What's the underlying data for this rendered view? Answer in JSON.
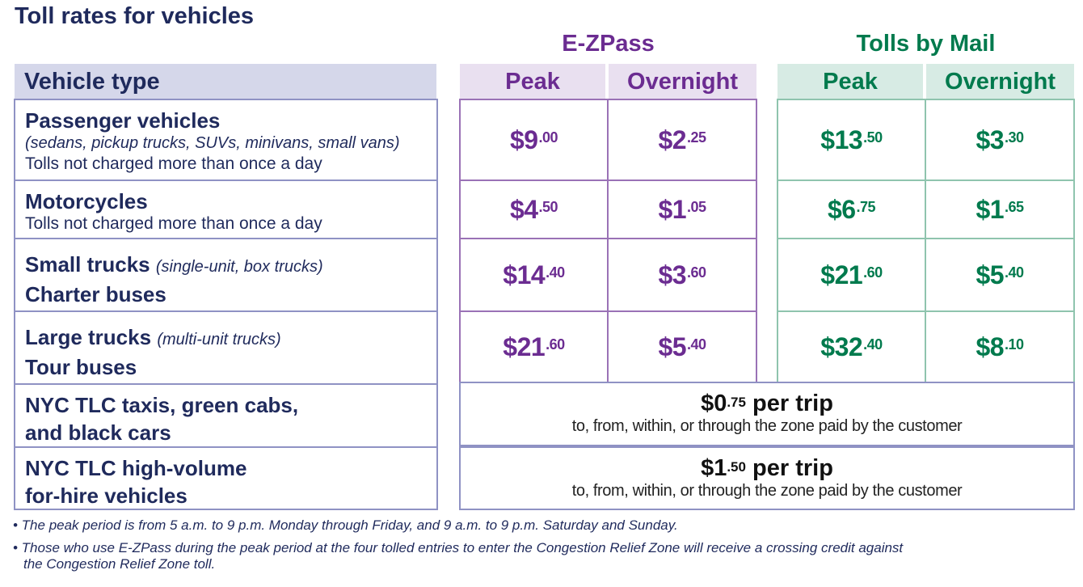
{
  "title": "Toll rates for vehicles",
  "groups": {
    "ezpass": "E-ZPass",
    "mail": "Tolls by Mail"
  },
  "headers": {
    "vehicle_type": "Vehicle type",
    "peak": "Peak",
    "overnight": "Overnight"
  },
  "vehicles": [
    {
      "name": "Passenger vehicles",
      "detail": "(sedans, pickup trucks, SUVs, minivans, small vans)",
      "note": "Tolls not charged more than once a day"
    },
    {
      "name": "Motorcycles",
      "note": "Tolls not charged more than once a day"
    },
    {
      "name": "Small trucks",
      "detail": "(single-unit, box trucks)",
      "name2": "Charter buses"
    },
    {
      "name": "Large trucks",
      "detail": "(multi-unit trucks)",
      "name2": "Tour buses"
    },
    {
      "line1": "NYC TLC taxis, green cabs,",
      "line2": "and black cars"
    },
    {
      "line1": "NYC TLC high-volume",
      "line2": "for-hire vehicles"
    }
  ],
  "rates": [
    {
      "ez_peak": [
        "$9",
        ".00"
      ],
      "ez_overnight": [
        "$2",
        ".25"
      ],
      "mail_peak": [
        "$13",
        ".50"
      ],
      "mail_overnight": [
        "$3",
        ".30"
      ]
    },
    {
      "ez_peak": [
        "$4",
        ".50"
      ],
      "ez_overnight": [
        "$1",
        ".05"
      ],
      "mail_peak": [
        "$6",
        ".75"
      ],
      "mail_overnight": [
        "$1",
        ".65"
      ]
    },
    {
      "ez_peak": [
        "$14",
        ".40"
      ],
      "ez_overnight": [
        "$3",
        ".60"
      ],
      "mail_peak": [
        "$21",
        ".60"
      ],
      "mail_overnight": [
        "$5",
        ".40"
      ]
    },
    {
      "ez_peak": [
        "$21",
        ".60"
      ],
      "ez_overnight": [
        "$5",
        ".40"
      ],
      "mail_peak": [
        "$32",
        ".40"
      ],
      "mail_overnight": [
        "$8",
        ".10"
      ]
    }
  ],
  "trips": [
    {
      "dollars": "$0",
      "cents": ".75",
      "suffix": " per trip",
      "desc": "to, from, within, or through the zone paid by the customer"
    },
    {
      "dollars": "$1",
      "cents": ".50",
      "suffix": " per trip",
      "desc": "to, from, within, or through the zone paid by the customer"
    }
  ],
  "notes": [
    "• The peak period is from 5 a.m. to 9 p.m. Monday through Friday, and 9 a.m. to 9 p.m. Saturday and Sunday.",
    "• Those who use E-ZPass during the peak period at the four tolled entries to enter the Congestion Relief Zone will receive a crossing credit against",
    "the Congestion Relief Zone toll."
  ]
}
